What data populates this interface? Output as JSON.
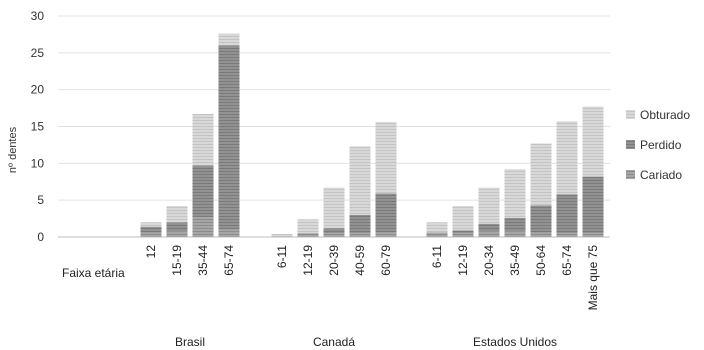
{
  "chart_data": {
    "type": "bar",
    "stacked": true,
    "ylabel": "nº dentes",
    "ylim": [
      0,
      30
    ],
    "yticks": [
      0,
      5,
      10,
      15,
      20,
      25,
      30
    ],
    "grid": "horizontal",
    "legend_position": "right",
    "category_row_label": "Faixa etária",
    "groups": [
      {
        "name": "Brasil",
        "categories": [
          "12",
          "15-19",
          "35-44",
          "65-74"
        ],
        "series": [
          {
            "name": "Cariado",
            "values": [
              0.6,
              0.8,
              2.7,
              1.0
            ]
          },
          {
            "name": "Perdido",
            "values": [
              0.8,
              1.2,
              7.0,
              25.0
            ]
          },
          {
            "name": "Obturado",
            "values": [
              0.6,
              2.2,
              7.0,
              1.6
            ]
          }
        ]
      },
      {
        "name": "Canadá",
        "categories": [
          "6-11",
          "12-19",
          "20-39",
          "40-59",
          "60-79"
        ],
        "series": [
          {
            "name": "Cariado",
            "values": [
              0.1,
              0.3,
              0.5,
              0.5,
              0.6
            ]
          },
          {
            "name": "Perdido",
            "values": [
              0.0,
              0.2,
              0.7,
              2.5,
              5.3
            ]
          },
          {
            "name": "Obturado",
            "values": [
              0.3,
              1.9,
              5.5,
              9.3,
              9.7
            ]
          }
        ]
      },
      {
        "name": "Estados Unidos",
        "categories": [
          "6-11",
          "12-19",
          "20-34",
          "35-49",
          "50-64",
          "65-74",
          "Mais que 75"
        ],
        "series": [
          {
            "name": "Cariado",
            "values": [
              0.5,
              0.5,
              0.8,
              0.8,
              0.6,
              0.5,
              0.5
            ]
          },
          {
            "name": "Perdido",
            "values": [
              0.1,
              0.4,
              1.0,
              1.8,
              3.7,
              5.3,
              7.7
            ]
          },
          {
            "name": "Obturado",
            "values": [
              1.4,
              3.3,
              4.9,
              6.6,
              8.4,
              9.9,
              9.5
            ]
          }
        ]
      }
    ],
    "colors": {
      "Cariado": "#9a9a9a",
      "Perdido": "#8a8a8a",
      "Obturado": "#d0d0d0"
    },
    "legend_order": [
      "Obturado",
      "Perdido",
      "Cariado"
    ]
  }
}
